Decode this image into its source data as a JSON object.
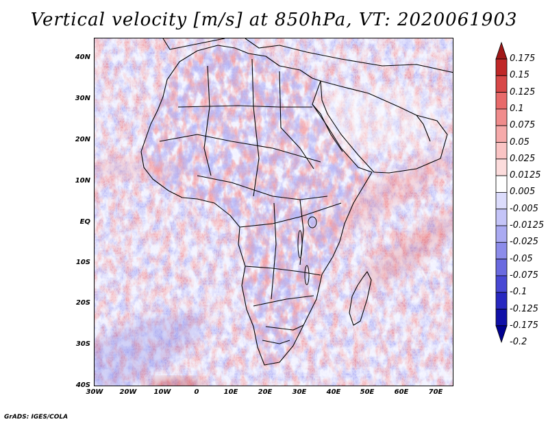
{
  "title": "Vertical velocity [m/s] at 850hPa, VT: 2020061903",
  "credit": "GrADS: IGES/COLA",
  "lat_labels": [
    "40N",
    "30N",
    "20N",
    "10N",
    "EQ",
    "10S",
    "20S",
    "30S",
    "40S"
  ],
  "lon_labels": [
    "30W",
    "20W",
    "10W",
    "0",
    "10E",
    "20E",
    "30E",
    "40E",
    "50E",
    "60E",
    "70E"
  ],
  "colorbar": {
    "labels": [
      "0.175",
      "0.15",
      "0.125",
      "0.1",
      "0.075",
      "0.05",
      "0.025",
      "0.0125",
      "0.005",
      "-0.005",
      "-0.0125",
      "-0.025",
      "-0.05",
      "-0.075",
      "-0.1",
      "-0.125",
      "-0.175",
      "-0.2"
    ],
    "colors": [
      "#a01818",
      "#c02828",
      "#d84848",
      "#e86a6a",
      "#f08c8c",
      "#f6aaaa",
      "#fac4c4",
      "#fcdcdc",
      "#ffffff",
      "#dcdcfc",
      "#c4c4f8",
      "#aaaaf2",
      "#8c8cea",
      "#6a6ae0",
      "#4848d4",
      "#2828c0",
      "#1010a8",
      "#000090"
    ]
  }
}
